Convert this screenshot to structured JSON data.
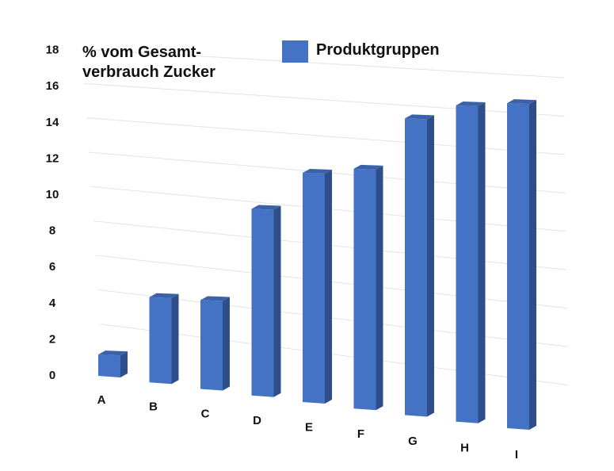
{
  "chart_data": {
    "type": "bar",
    "categories": [
      "A",
      "B",
      "C",
      "D",
      "E",
      "F",
      "G",
      "H",
      "I"
    ],
    "series": [
      {
        "name": "Produktgruppen",
        "values": [
          1.2,
          4.8,
          5.0,
          10.5,
          12.9,
          13.5,
          16.7,
          17.8,
          18.3
        ],
        "color": "#4472C4"
      }
    ],
    "ylabel_lines": [
      "% vom Gesamt-",
      "verbrauch Zucker"
    ],
    "yticks": [
      0,
      2,
      4,
      6,
      8,
      10,
      12,
      14,
      16,
      18
    ],
    "ylim": [
      0,
      18
    ],
    "grid": true,
    "legend_position": "top"
  }
}
